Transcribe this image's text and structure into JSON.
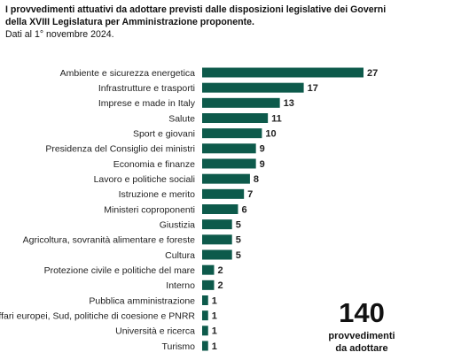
{
  "chart_data": {
    "type": "bar",
    "orientation": "horizontal",
    "title": "I provvedimenti attuativi da adottare previsti dalle disposizioni legislative dei Governi della XVIII Legislatura per Amministrazione proponente.",
    "subtitle": "Dati al 1° novembre 2024.",
    "categories": [
      "Ambiente e sicurezza energetica",
      "Infrastrutture e trasporti",
      "Imprese e made in Italy",
      "Salute",
      "Sport e giovani",
      "Presidenza del Consiglio dei ministri",
      "Economia e finanze",
      "Lavoro e politiche sociali",
      "Istruzione e merito",
      "Ministeri coproponenti",
      "Giustizia",
      "Agricoltura, sovranità alimentare e foreste",
      "Cultura",
      "Protezione civile e politiche del mare",
      "Interno",
      "Pubblica amministrazione",
      "Affari europei, Sud, politiche di coesione e PNRR",
      "Università e ricerca",
      "Turismo"
    ],
    "values": [
      27,
      17,
      13,
      11,
      10,
      9,
      9,
      8,
      7,
      6,
      5,
      5,
      5,
      2,
      2,
      1,
      1,
      1,
      1
    ],
    "color": "#0d5a4b",
    "annotation": {
      "value": 140,
      "lines": [
        "provvedimenti",
        "da adottare"
      ]
    }
  }
}
